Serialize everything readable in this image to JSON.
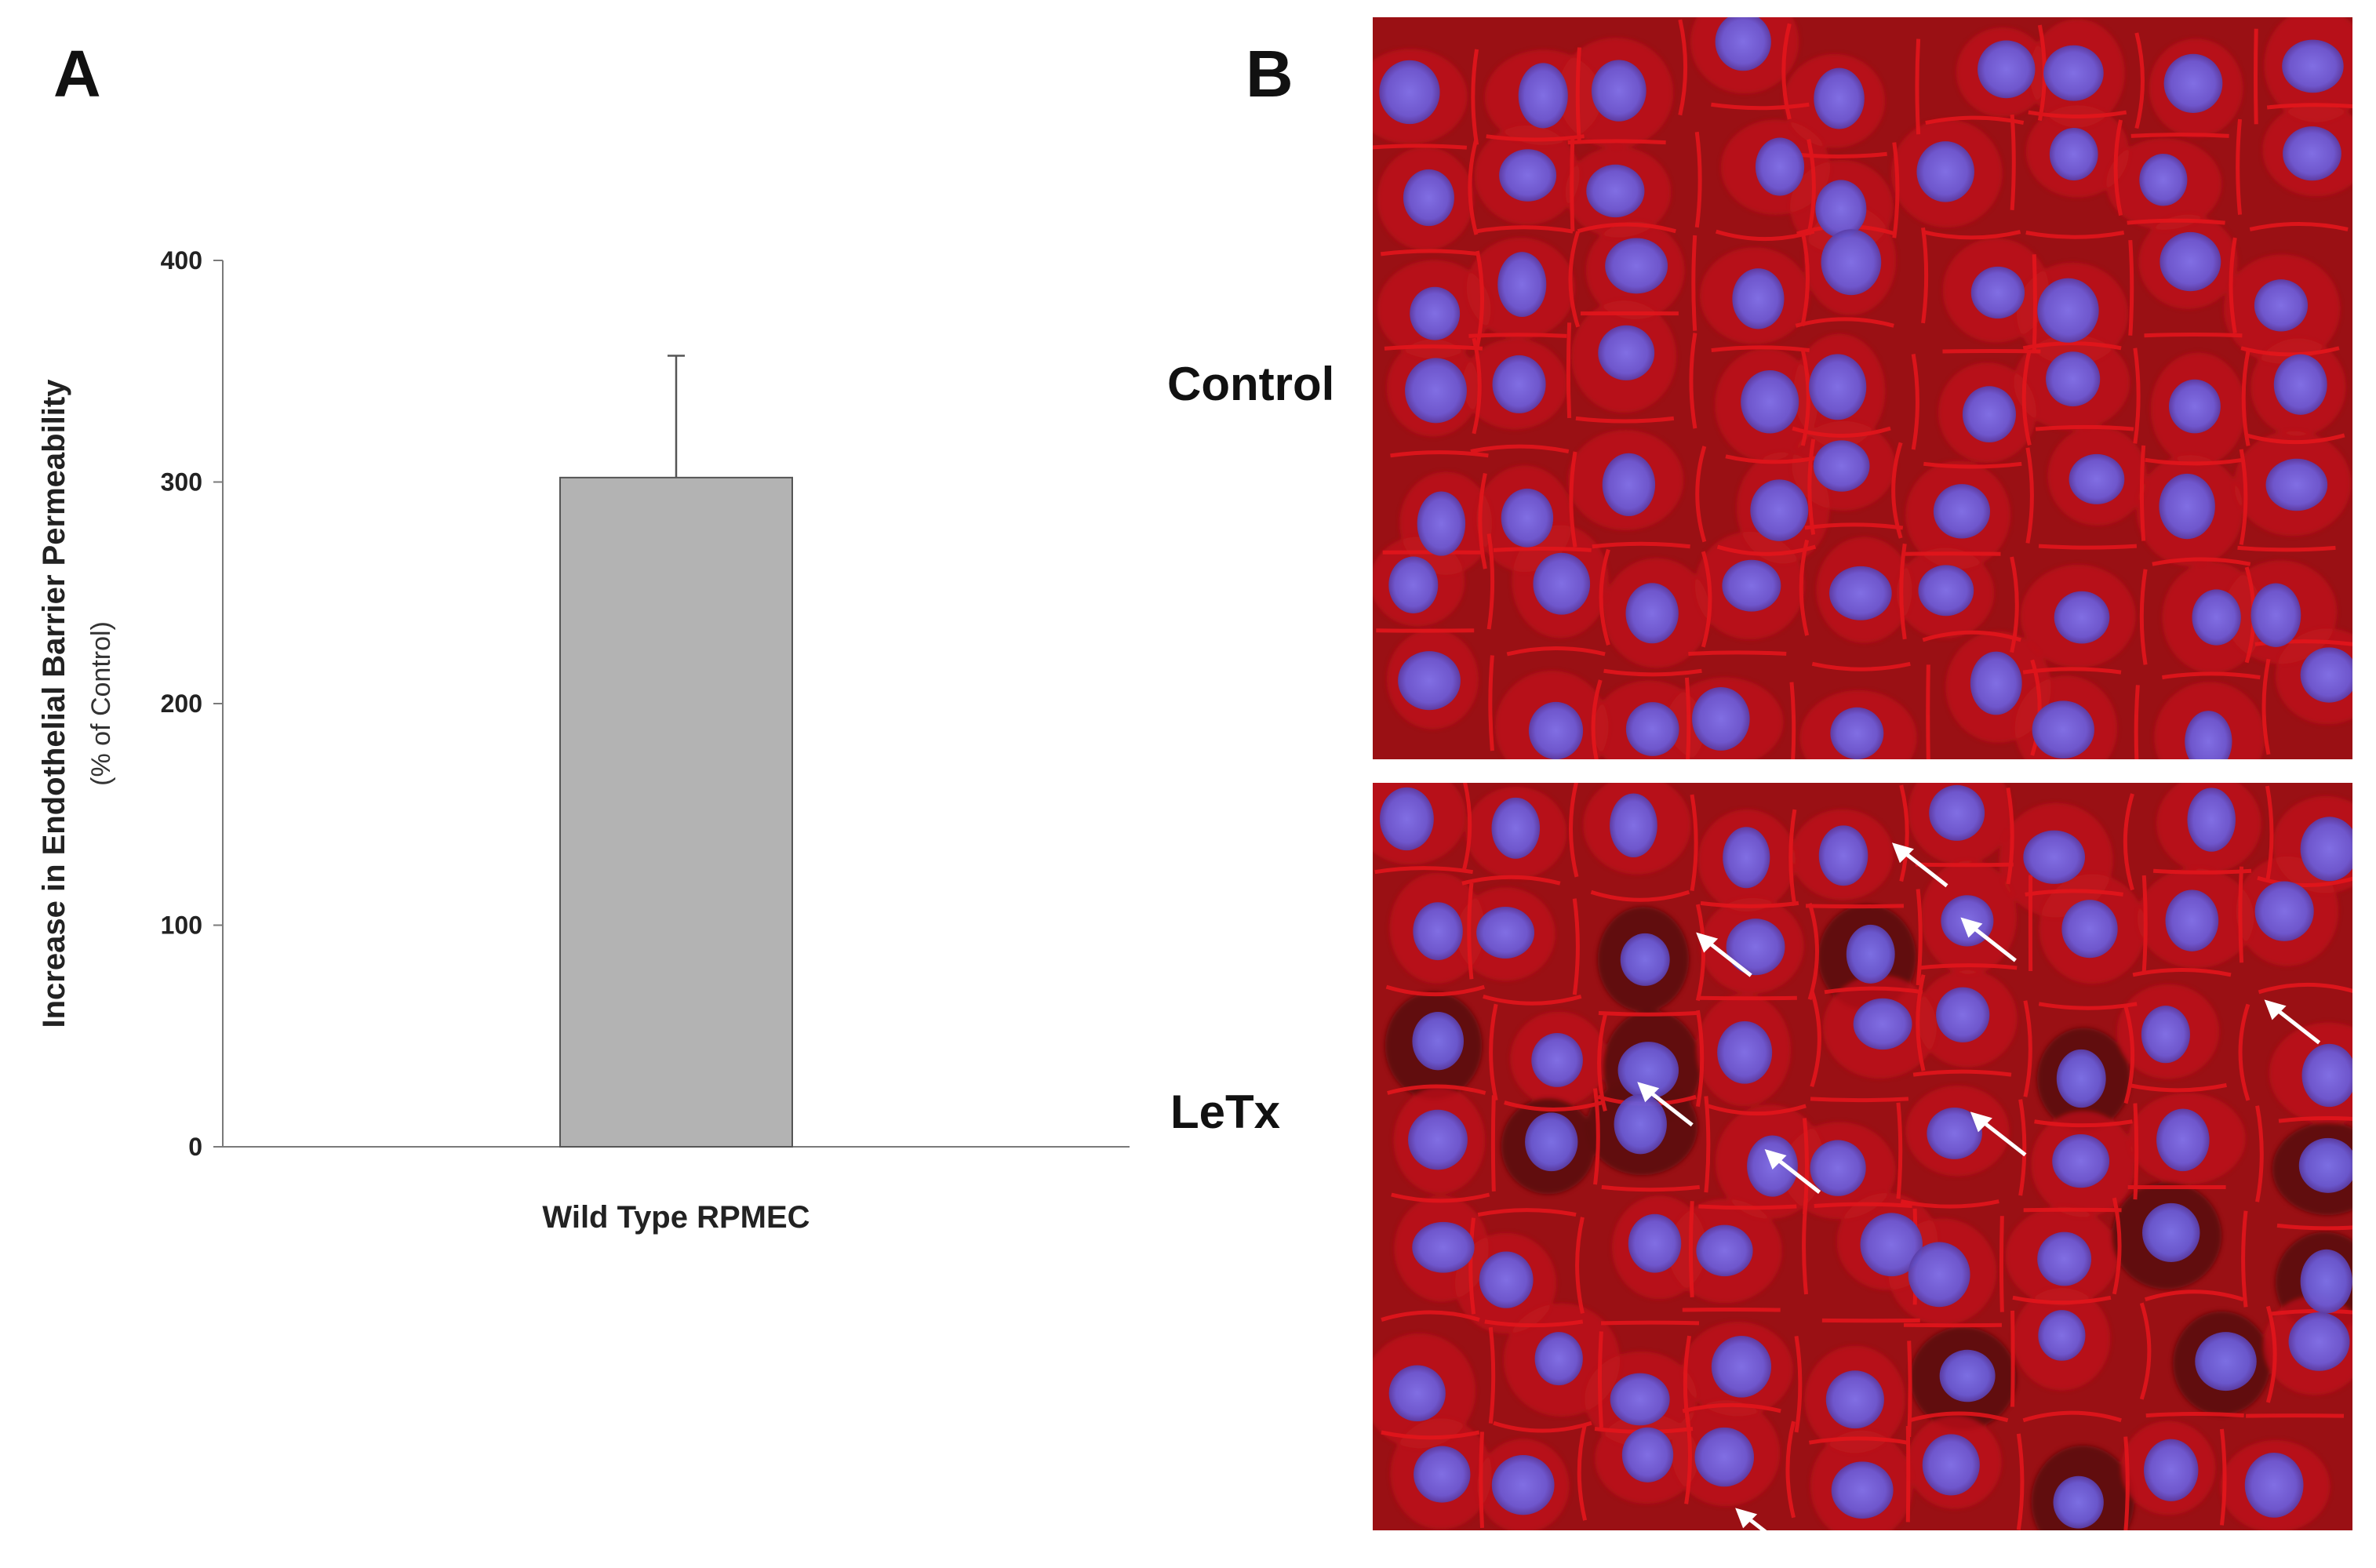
{
  "panels": {
    "a_letter": "A",
    "b_letter": "B"
  },
  "chart_data": {
    "type": "bar",
    "categories": [
      "Wild Type RPMEC"
    ],
    "values": [
      302
    ],
    "error_upper": [
      357
    ],
    "title": "",
    "xlabel": "",
    "ylabel": "Increase in Endothelial Barrier Permeability",
    "ylabel_sub": "(% of Control)",
    "ylim": [
      0,
      400
    ],
    "yticks": [
      0,
      100,
      200,
      300,
      400
    ],
    "grid": false,
    "bar_color": "#b3b3b3",
    "bar_edge": "#555555"
  },
  "micrographs": {
    "control_label": "Control",
    "letx_label": "LeTx",
    "stain_red": "#e3161c",
    "stain_blue": "#6a5bd6",
    "letx_arrow_count": 8,
    "arrow_color": "#ffffff"
  }
}
